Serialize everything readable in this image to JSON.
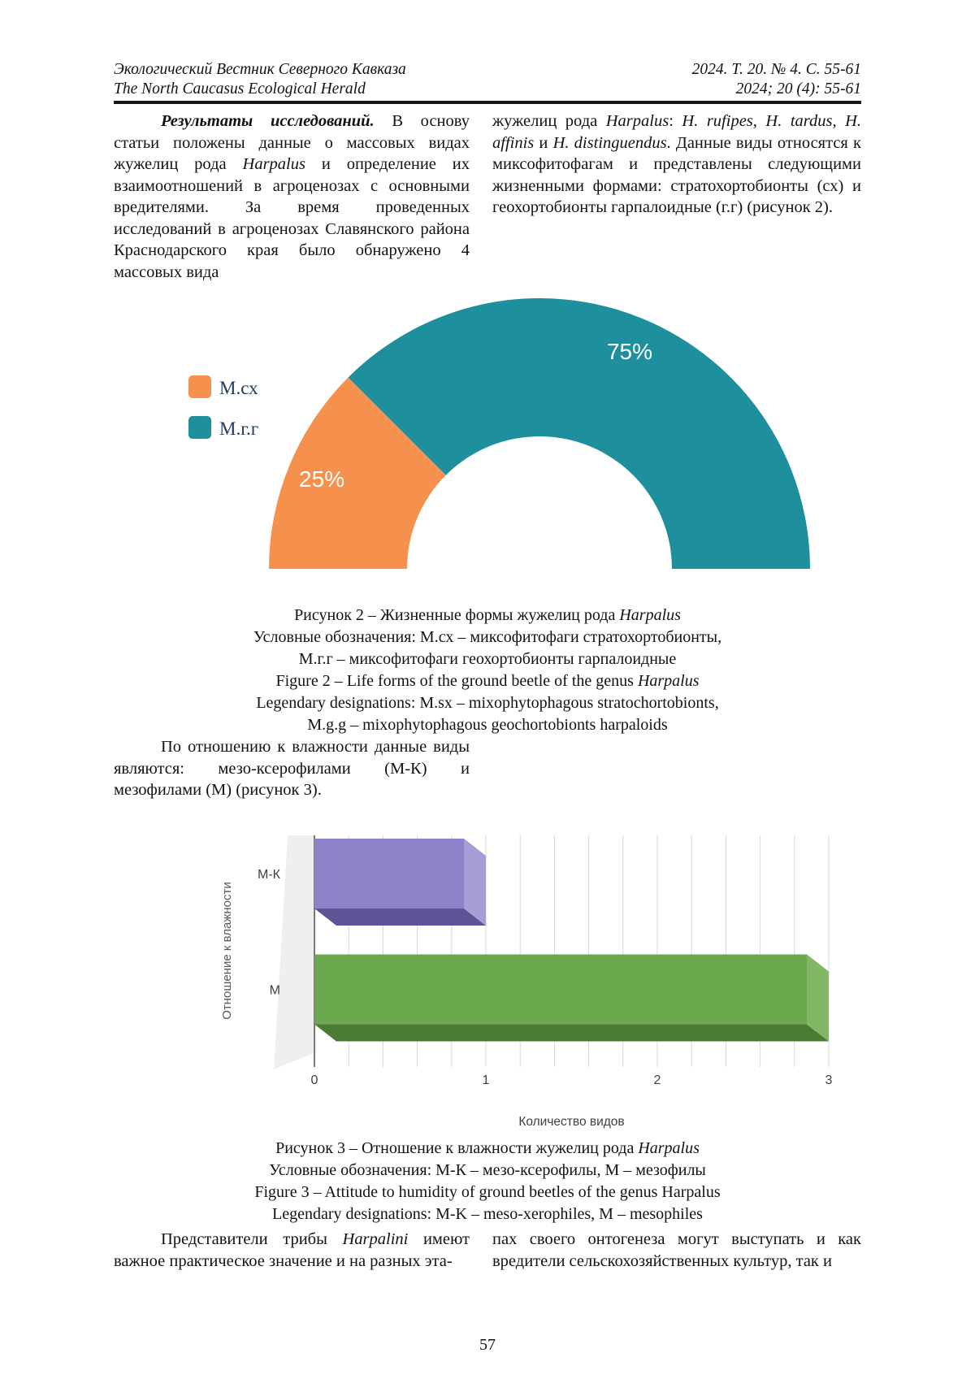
{
  "header": {
    "journal_ru": "Экологический Вестник Северного Кавказа",
    "journal_en": "The North Caucasus Ecological Herald",
    "issue_ru": "2024. Т. 20. № 4. С. 55-61",
    "issue_en": "2024; 20 (4): 55-61"
  },
  "content": {
    "intro_left": [
      {
        "t": "Результаты исследований.",
        "s": "bi"
      },
      {
        "t": " В основу статьи положены данные о массовых видах жужелиц рода ",
        "s": "n"
      },
      {
        "t": "Harpalus",
        "s": "i"
      },
      {
        "t": " и определение их взаимоотношений в агроценозах с основными вредителями. За время проведенных исследований в агроценозах Славянского района Краснодарского края было обнаружено 4 массовых вида",
        "s": "n"
      }
    ],
    "intro_right": [
      {
        "t": "жужелиц рода ",
        "s": "n"
      },
      {
        "t": "Harpalus",
        "s": "i"
      },
      {
        "t": ": ",
        "s": "n"
      },
      {
        "t": "H. rufipes, H. tardus, H. affinis",
        "s": "i"
      },
      {
        "t": " и ",
        "s": "n"
      },
      {
        "t": "H. distinguendus",
        "s": "i"
      },
      {
        "t": ". Данные виды относятся к миксофитофагам и представлены следующими жизненными формами: стратохортобионты (сх) и геохортобионты гарпалоидные (г.г) (рисунок 2).",
        "s": "n"
      }
    ],
    "humidity_para": [
      {
        "t": "По отношению к влажности данные виды являются: мезо-ксерофилами (М-К) и мезофилами (М) (рисунок 3).",
        "s": "n"
      }
    ],
    "bottom_left": [
      {
        "t": "Представители трибы ",
        "s": "n"
      },
      {
        "t": "Harpalini",
        "s": "i"
      },
      {
        "t": " имеют важное практическое значение и на разных эта-",
        "s": "n"
      }
    ],
    "bottom_right": [
      {
        "t": "пах своего онтогенеза могут выступать и как вредители сельскохозяйственных культур, так и",
        "s": "n"
      }
    ]
  },
  "figure2": {
    "caption_lines": [
      [
        {
          "t": "Рисунок 2 – Жизненные формы жужелиц рода ",
          "s": "n"
        },
        {
          "t": "Harpalus",
          "s": "i"
        }
      ],
      [
        {
          "t": "Условные обозначения: М.сх – миксофитофаги стратохортобионты,",
          "s": "n"
        }
      ],
      [
        {
          "t": "М.г.г – миксофитофаги геохортобионты гарпалоидные",
          "s": "n"
        }
      ],
      [
        {
          "t": "Figure 2 – Life forms of the ground beetle of the genus ",
          "s": "n"
        },
        {
          "t": "Harpalus",
          "s": "i"
        }
      ],
      [
        {
          "t": "Legendary designations: M.sx – mixophytophagous stratochortobionts,",
          "s": "n"
        }
      ],
      [
        {
          "t": "M.g.g – mixophytophagous geochortobionts harpaloids",
          "s": "n"
        }
      ]
    ]
  },
  "figure3": {
    "caption_lines": [
      [
        {
          "t": "Рисунок 3 – Отношение к влажности жужелиц рода ",
          "s": "n"
        },
        {
          "t": "Harpalus",
          "s": "i"
        }
      ],
      [
        {
          "t": "Условные обозначения: М-К – мезо-ксерофилы, М – мезофилы",
          "s": "n"
        }
      ],
      [
        {
          "t": "Figure 3 – Attitude to humidity of ground beetles of the genus Harpalus",
          "s": "n"
        }
      ],
      [
        {
          "t": "Legendary designations: M-K – meso-xerophiles, M – mesophiles",
          "s": "n"
        }
      ]
    ]
  },
  "chart_data": [
    {
      "type": "pie",
      "style": "half-donut",
      "labels": [
        "М.сх",
        "М.г.г"
      ],
      "values": [
        25,
        75
      ],
      "percent_labels": [
        "25%",
        "75%"
      ],
      "colors": [
        "#F5914C",
        "#1E8F9C"
      ],
      "legend_position": "left",
      "legend_text_color": "#21395E"
    },
    {
      "type": "bar",
      "orientation": "horizontal",
      "style": "3d",
      "categories": [
        "М-К",
        "М"
      ],
      "values": [
        1,
        3
      ],
      "colors": [
        {
          "front": "#8D81C9",
          "side": "#A89DD6",
          "bottom": "#5E5397"
        },
        {
          "front": "#6BA84E",
          "side": "#82B765",
          "bottom": "#4C7C34"
        }
      ],
      "xlabel": "Количество видов",
      "ylabel": "Отношение к влажности",
      "xlim": [
        0,
        3
      ],
      "xticks": [
        "0",
        "1",
        "2",
        "3"
      ],
      "grid": true,
      "gridline_color": "#d9d9d9",
      "axis_color": "#4d4d4d",
      "wall_color": "#efefef",
      "label_color": "#404040"
    }
  ],
  "page_number": "57"
}
